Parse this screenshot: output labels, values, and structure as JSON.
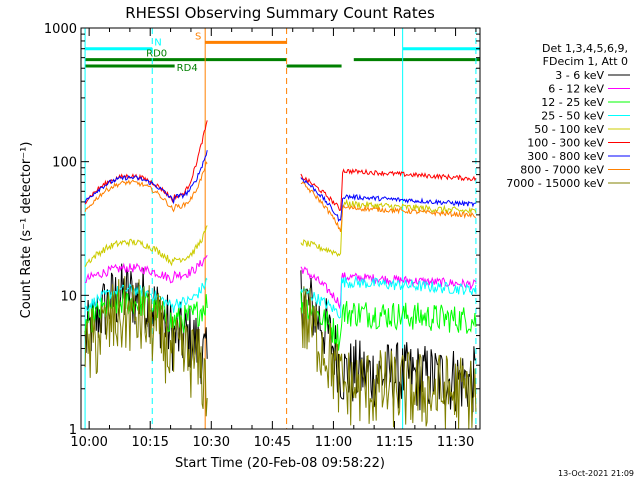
{
  "chart_data": {
    "type": "line",
    "title": "RHESSI Observing Summary Count Rates",
    "xlabel": "Start Time (20-Feb-08 09:58:22)",
    "ylabel": "Count Rate (s⁻¹ detector⁻¹)",
    "yscale": "log",
    "ylim": [
      1,
      1000
    ],
    "xlim_minutes": [
      -2,
      96
    ],
    "x_ticks": [
      {
        "m": 0,
        "label": "10:00"
      },
      {
        "m": 15,
        "label": "10:15"
      },
      {
        "m": 30,
        "label": "10:30"
      },
      {
        "m": 45,
        "label": "10:45"
      },
      {
        "m": 60,
        "label": "11:00"
      },
      {
        "m": 75,
        "label": "11:15"
      },
      {
        "m": 90,
        "label": "11:30"
      }
    ],
    "y_ticks": [
      {
        "v": 1,
        "label": "1"
      },
      {
        "v": 10,
        "label": "10"
      },
      {
        "v": 100,
        "label": "100"
      },
      {
        "v": 1000,
        "label": "1000"
      }
    ],
    "legend_header": [
      "Det 1,3,4,5,6,9,",
      "FDecim 1, Att 0"
    ],
    "series": [
      {
        "name": "3 - 6 keV",
        "color": "#000000",
        "base": 4.5,
        "peak": 10,
        "post": 2.3,
        "flare": 3,
        "late_jump": 1.0,
        "noise": 0.6
      },
      {
        "name": "6 - 12 keV",
        "color": "#ff00ff",
        "base": 13,
        "peak": 16,
        "post": 12,
        "flare": 20,
        "late_jump": 1.0,
        "noise": 0.08
      },
      {
        "name": "12 - 25 keV",
        "color": "#00ff00",
        "base": 6,
        "peak": 9,
        "post": 6.5,
        "flare": 9,
        "late_jump": 1.0,
        "noise": 0.25
      },
      {
        "name": "25 - 50 keV",
        "color": "#00ffff",
        "base": 8,
        "peak": 11,
        "post": 11,
        "flare": 13,
        "late_jump": 1.0,
        "noise": 0.1
      },
      {
        "name": "50 - 100 keV",
        "color": "#cccc00",
        "base": 17,
        "peak": 25,
        "post": 33,
        "flare": 32,
        "late_jump": 1.6,
        "noise": 0.06
      },
      {
        "name": "100 - 300 keV",
        "color": "#ff0000",
        "base": 50,
        "peak": 78,
        "post": 62,
        "flare": 200,
        "late_jump": 1.5,
        "noise": 0.04
      },
      {
        "name": "300 - 800 keV",
        "color": "#0000ff",
        "base": 50,
        "peak": 76,
        "post": 46,
        "flare": 120,
        "late_jump": 1.3,
        "noise": 0.04
      },
      {
        "name": "800 - 7000 keV",
        "color": "#ff8000",
        "base": 42,
        "peak": 70,
        "post": 38,
        "flare": 100,
        "late_jump": 1.3,
        "noise": 0.04
      },
      {
        "name": "7000 - 15000 keV",
        "color": "#808000",
        "base": 3.2,
        "peak": 7,
        "post": 1.8,
        "flare": 2,
        "late_jump": 1.0,
        "noise": 0.7
      }
    ],
    "flag_bars": [
      {
        "label": "N",
        "color": "#00ffff",
        "y": 700,
        "segments": [
          [
            -1,
            15.5
          ],
          [
            77,
            96
          ]
        ],
        "label_at": 16.0
      },
      {
        "label": "S",
        "color": "#ff8000",
        "y": 780,
        "segments": [
          [
            28.5,
            48.5
          ]
        ],
        "label_at": 26.0
      },
      {
        "label": "RD0",
        "color": "#008000",
        "y": 580,
        "segments": [
          [
            -1,
            48.5
          ],
          [
            65,
            96
          ]
        ],
        "label_at": 14.0
      },
      {
        "label": "RD4",
        "color": "#008000",
        "y": 520,
        "segments": [
          [
            -1,
            21
          ],
          [
            48.5,
            62
          ]
        ],
        "label_at": 21.5
      }
    ],
    "vertical_markers": [
      {
        "m": -1,
        "color": "#00ffff",
        "dashed": false
      },
      {
        "m": 15.5,
        "color": "#00ffff",
        "dashed": true
      },
      {
        "m": 28.5,
        "color": "#ff8000",
        "dashed": false
      },
      {
        "m": 48.5,
        "color": "#ff8000",
        "dashed": true
      },
      {
        "m": 77,
        "color": "#00ffff",
        "dashed": false
      },
      {
        "m": 95,
        "color": "#00ffff",
        "dashed": true
      }
    ],
    "data_gap_minutes": [
      29,
      52
    ],
    "timestamp": "13-Oct-2021 21:09"
  }
}
